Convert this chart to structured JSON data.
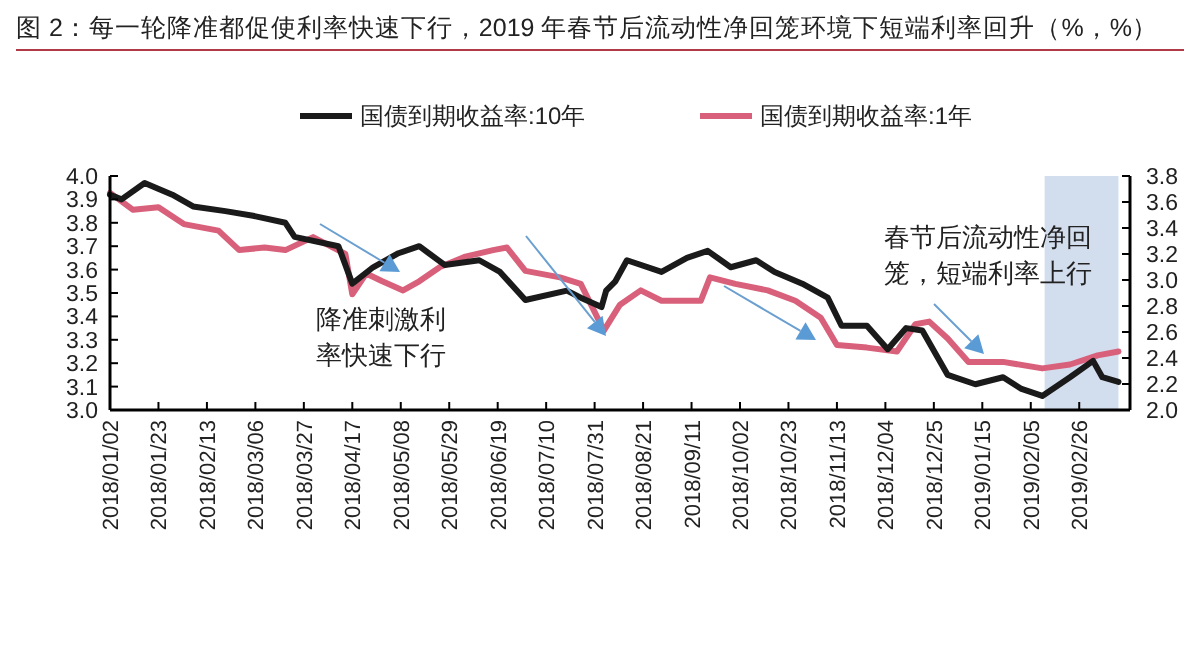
{
  "chart_data": {
    "type": "line",
    "title": "图 2：每一轮降准都促使利率快速下行，2019 年春节后流动性净回笼环境下短端利率回升（%，%）",
    "annotations": [
      "降准刺激利率快速下行",
      "春节后流动性净回笼，短端利率上行"
    ],
    "legend": "top",
    "xlim": [
      "2018-01-02",
      "2019-03-20"
    ],
    "xticks": [
      {
        "value": "2018-01-02",
        "label": "2018/01/02"
      },
      {
        "value": "2018-01-23",
        "label": "2018/01/23"
      },
      {
        "value": "2018-02-13",
        "label": "2018/02/13"
      },
      {
        "value": "2018-03-06",
        "label": "2018/03/06"
      },
      {
        "value": "2018-03-27",
        "label": "2018/03/27"
      },
      {
        "value": "2018-04-17",
        "label": "2018/04/17"
      },
      {
        "value": "2018-05-08",
        "label": "2018/05/08"
      },
      {
        "value": "2018-05-29",
        "label": "2018/05/29"
      },
      {
        "value": "2018-06-19",
        "label": "2018/06/19"
      },
      {
        "value": "2018-07-10",
        "label": "2018/07/10"
      },
      {
        "value": "2018-07-31",
        "label": "2018/07/31"
      },
      {
        "value": "2018-08-21",
        "label": "2018/08/21"
      },
      {
        "value": "2018-09-11",
        "label": "2018/09/11"
      },
      {
        "value": "2018-10-02",
        "label": "2018/10/02"
      },
      {
        "value": "2018-10-23",
        "label": "2018/10/23"
      },
      {
        "value": "2018-11-13",
        "label": "2018/11/13"
      },
      {
        "value": "2018-12-04",
        "label": "2018/12/04"
      },
      {
        "value": "2018-12-25",
        "label": "2018/12/25"
      },
      {
        "value": "2019-01-15",
        "label": "2019/01/15"
      },
      {
        "value": "2019-02-05",
        "label": "2019/02/05"
      },
      {
        "value": "2019-02-26",
        "label": "2019/02/26"
      }
    ],
    "ylim": [
      3.0,
      4.0
    ],
    "yticks": [
      {
        "value": 3,
        "label": "3.0"
      },
      3.1,
      3.2,
      3.3,
      3.4,
      3.5,
      3.6,
      3.7,
      3.8,
      3.9,
      {
        "value": 4,
        "label": "4.0"
      }
    ],
    "y2lim": [
      2.0,
      3.8
    ],
    "y2ticks": [
      {
        "value": 2,
        "label": "2.0"
      },
      2.2,
      2.4,
      2.6,
      2.8,
      {
        "value": 3,
        "label": "3.0"
      },
      3.2,
      3.4,
      3.6,
      3.8
    ],
    "bands": [
      {
        "axis": "x",
        "from": "2019-02-11",
        "to": "2019-03-15",
        "color": "#c7d4ea"
      }
    ],
    "series": [
      {
        "name": "国债到期收益率:10年",
        "color": "#1a1a1a",
        "x": [
          "2018-01-02",
          "2018-01-07",
          "2018-01-17",
          "2018-01-29",
          "2018-02-07",
          "2018-02-21",
          "2018-03-05",
          "2018-03-19",
          "2018-03-23",
          "2018-04-11",
          "2018-04-17",
          "2018-04-26",
          "2018-05-07",
          "2018-05-16",
          "2018-05-27",
          "2018-06-11",
          "2018-06-20",
          "2018-07-01",
          "2018-07-19",
          "2018-07-25",
          "2018-08-03",
          "2018-08-05",
          "2018-08-09",
          "2018-08-14",
          "2018-08-29",
          "2018-09-09",
          "2018-09-18",
          "2018-09-28",
          "2018-10-09",
          "2018-10-17",
          "2018-10-29",
          "2018-11-09",
          "2018-11-15",
          "2018-11-26",
          "2018-12-05",
          "2018-12-13",
          "2018-12-20",
          "2018-12-31",
          "2019-01-12",
          "2019-01-24",
          "2019-02-01",
          "2019-02-10",
          "2019-02-22",
          "2019-03-04",
          "2019-03-08",
          "2019-03-15"
        ],
        "values": [
          3.92,
          3.9,
          3.97,
          3.92,
          3.87,
          3.85,
          3.83,
          3.8,
          3.74,
          3.7,
          3.54,
          3.61,
          3.67,
          3.7,
          3.62,
          3.64,
          3.59,
          3.47,
          3.51,
          3.48,
          3.44,
          3.51,
          3.55,
          3.64,
          3.59,
          3.65,
          3.68,
          3.61,
          3.64,
          3.59,
          3.54,
          3.48,
          3.36,
          3.36,
          3.26,
          3.35,
          3.34,
          3.15,
          3.11,
          3.14,
          3.09,
          3.06,
          3.14,
          3.21,
          3.14,
          3.12
        ]
      },
      {
        "name": "国债到期收益率:1年",
        "color": "#d9607a",
        "axis": "y2",
        "x": [
          "2018-01-02",
          "2018-01-12",
          "2018-01-23",
          "2018-02-03",
          "2018-02-18",
          "2018-02-27",
          "2018-03-10",
          "2018-03-19",
          "2018-03-31",
          "2018-04-14",
          "2018-04-17",
          "2018-04-23",
          "2018-04-30",
          "2018-05-09",
          "2018-05-16",
          "2018-05-25",
          "2018-06-05",
          "2018-06-17",
          "2018-06-23",
          "2018-07-01",
          "2018-07-16",
          "2018-07-25",
          "2018-08-04",
          "2018-08-11",
          "2018-08-20",
          "2018-08-29",
          "2018-09-15",
          "2018-09-19",
          "2018-09-30",
          "2018-10-14",
          "2018-10-26",
          "2018-11-06",
          "2018-11-13",
          "2018-11-26",
          "2018-12-09",
          "2018-12-17",
          "2018-12-23",
          "2018-12-31",
          "2019-01-09",
          "2019-01-24",
          "2019-02-10",
          "2019-02-22",
          "2019-03-06",
          "2019-03-15"
        ],
        "values": [
          3.67,
          3.54,
          3.56,
          3.43,
          3.38,
          3.23,
          3.25,
          3.23,
          3.33,
          3.2,
          2.89,
          3.05,
          2.99,
          2.92,
          2.99,
          3.1,
          3.18,
          3.23,
          3.25,
          3.07,
          3.02,
          2.97,
          2.61,
          2.81,
          2.92,
          2.84,
          2.84,
          3.02,
          2.97,
          2.92,
          2.84,
          2.71,
          2.5,
          2.48,
          2.45,
          2.66,
          2.68,
          2.55,
          2.37,
          2.37,
          2.32,
          2.35,
          2.42,
          2.45
        ]
      }
    ]
  }
}
